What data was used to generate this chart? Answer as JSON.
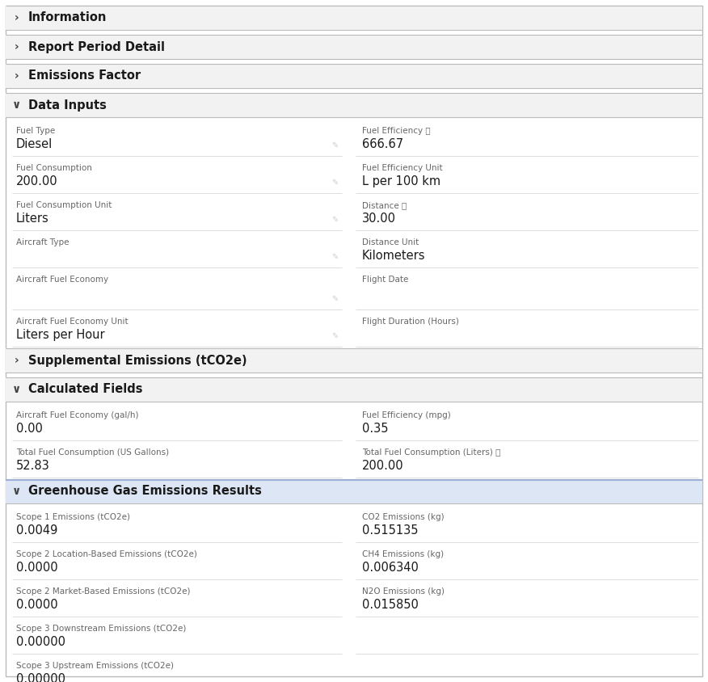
{
  "bg_color": "#ffffff",
  "section_bg": "#f2f2f2",
  "border_color": "#cccccc",
  "sep_color": "#dddddd",
  "text_dark": "#1a1a1a",
  "text_label": "#666666",
  "text_value": "#1a1a1a",
  "ghg_header_bg": "#dce6f5",
  "ghg_header_border": "#9ab0d4",
  "outer_border": "#bbbbbb",
  "sections_collapsed": [
    {
      "label": "Information",
      "collapsed": true
    },
    {
      "label": "Report Period Detail",
      "collapsed": true
    },
    {
      "label": "Emissions Factor",
      "collapsed": true
    }
  ],
  "data_inputs": {
    "label": "Data Inputs",
    "collapsed": false,
    "rows": [
      {
        "left_label": "Fuel Type",
        "left_value": "Diesel",
        "left_editable": true,
        "right_label": "Fuel Efficiency",
        "right_value": "666.67",
        "right_info": true
      },
      {
        "left_label": "Fuel Consumption",
        "left_value": "200.00",
        "left_editable": true,
        "right_label": "Fuel Efficiency Unit",
        "right_value": "L per 100 km",
        "right_info": false
      },
      {
        "left_label": "Fuel Consumption Unit",
        "left_value": "Liters",
        "left_editable": true,
        "right_label": "Distance",
        "right_value": "30.00",
        "right_info": true
      },
      {
        "left_label": "Aircraft Type",
        "left_value": "",
        "left_editable": true,
        "right_label": "Distance Unit",
        "right_value": "Kilometers",
        "right_info": false
      },
      {
        "left_label": "Aircraft Fuel Economy",
        "left_value": "",
        "left_editable": true,
        "right_label": "Flight Date",
        "right_value": "",
        "right_info": false
      },
      {
        "left_label": "Aircraft Fuel Economy Unit",
        "left_value": "Liters per Hour",
        "left_editable": true,
        "right_label": "Flight Duration (Hours)",
        "right_value": "",
        "right_info": false
      }
    ]
  },
  "supplemental": {
    "label": "Supplemental Emissions (tCO2e)",
    "collapsed": true
  },
  "calculated_fields": {
    "label": "Calculated Fields",
    "collapsed": false,
    "rows": [
      {
        "left_label": "Aircraft Fuel Economy (gal/h)",
        "left_value": "0.00",
        "right_label": "Fuel Efficiency (mpg)",
        "right_value": "0.35",
        "right_info": false
      },
      {
        "left_label": "Total Fuel Consumption (US Gallons)",
        "left_value": "52.83",
        "right_label": "Total Fuel Consumption (Liters)",
        "right_value": "200.00",
        "right_info": true
      }
    ]
  },
  "ghg_results": {
    "label": "Greenhouse Gas Emissions Results",
    "collapsed": false,
    "rows": [
      {
        "left_label": "Scope 1 Emissions (tCO2e)",
        "left_value": "0.0049",
        "right_label": "CO2 Emissions (kg)",
        "right_value": "0.515135"
      },
      {
        "left_label": "Scope 2 Location-Based Emissions (tCO2e)",
        "left_value": "0.0000",
        "right_label": "CH4 Emissions (kg)",
        "right_value": "0.006340"
      },
      {
        "left_label": "Scope 2 Market-Based Emissions (tCO2e)",
        "left_value": "0.0000",
        "right_label": "N2O Emissions (kg)",
        "right_value": "0.015850"
      },
      {
        "left_label": "Scope 3 Downstream Emissions (tCO2e)",
        "left_value": "0.00000",
        "right_label": "",
        "right_value": ""
      },
      {
        "left_label": "Scope 3 Upstream Emissions (tCO2e)",
        "left_value": "0.00000",
        "right_label": "",
        "right_value": ""
      }
    ]
  }
}
